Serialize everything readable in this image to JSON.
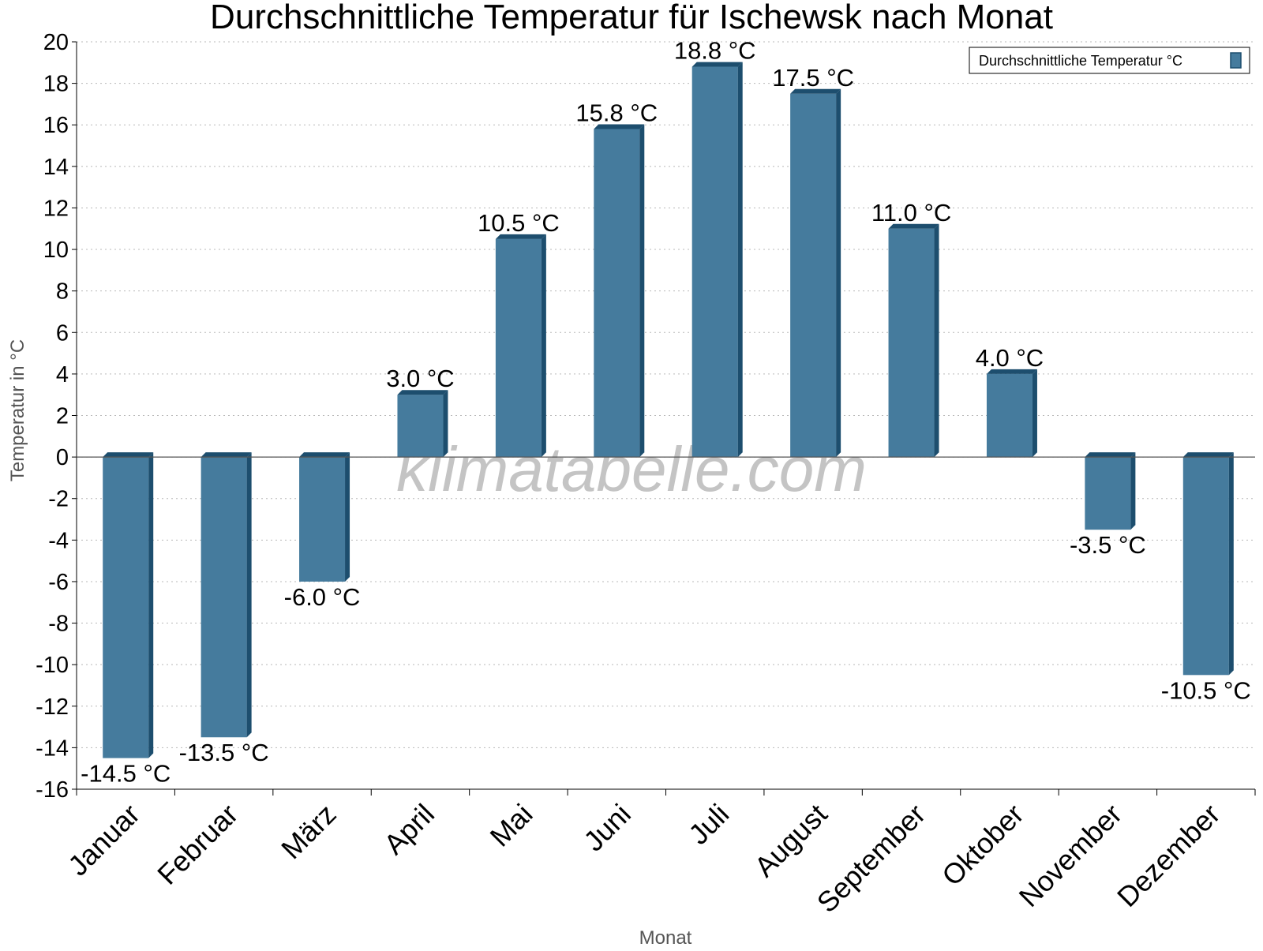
{
  "chart_data": {
    "type": "bar",
    "title": "Durchschnittliche Temperatur für Ischewsk nach Monat",
    "xlabel": "Monat",
    "ylabel": "Temperatur in °C",
    "unit": "°C",
    "categories": [
      "Januar",
      "Februar",
      "März",
      "April",
      "Mai",
      "Juni",
      "Juli",
      "August",
      "September",
      "Oktober",
      "November",
      "Dezember"
    ],
    "series": [
      {
        "name": "Durchschnittliche Temperatur °C",
        "values": [
          -14.5,
          -13.5,
          -6.0,
          3.0,
          10.5,
          15.8,
          18.8,
          17.5,
          11.0,
          4.0,
          -3.5,
          -10.5
        ],
        "color": "#457b9d",
        "edge_color": "#1d4e6e"
      }
    ],
    "ylim": [
      -16,
      20
    ],
    "yticks": [
      -16,
      -14,
      -12,
      -10,
      -8,
      -6,
      -4,
      -2,
      0,
      2,
      4,
      6,
      8,
      10,
      12,
      14,
      16,
      18,
      20
    ],
    "grid": true,
    "legend_position": "top-right",
    "watermark": "klimatabelle.com"
  }
}
